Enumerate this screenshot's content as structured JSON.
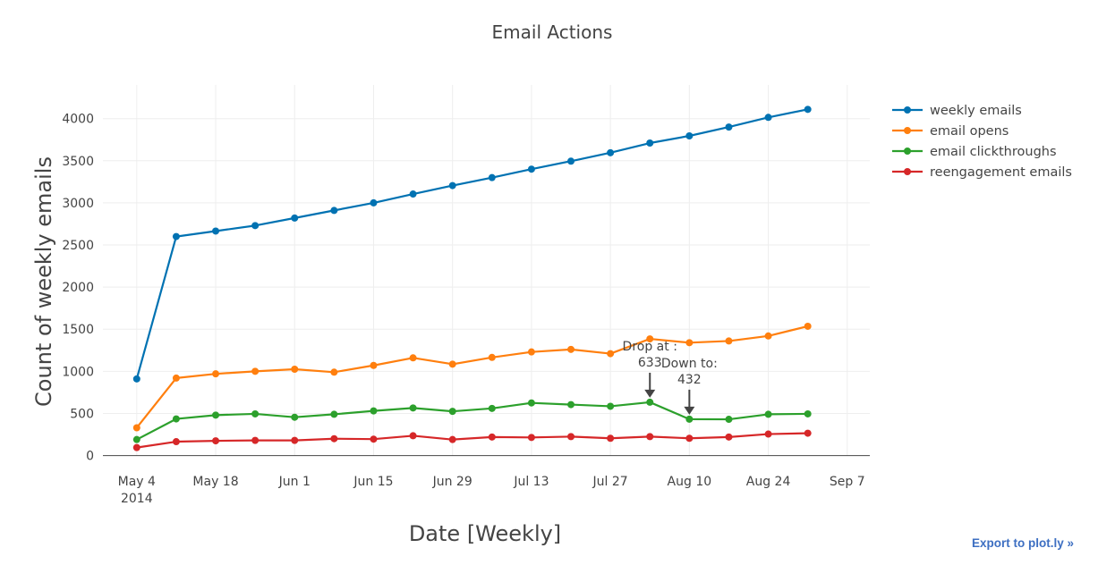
{
  "chart_data": {
    "type": "line",
    "title": "Email Actions",
    "xlabel": "Date [Weekly]",
    "ylabel": "Count of weekly emails",
    "x": [
      "2014-05-04",
      "2014-05-11",
      "2014-05-18",
      "2014-05-25",
      "2014-06-01",
      "2014-06-08",
      "2014-06-15",
      "2014-06-22",
      "2014-06-29",
      "2014-07-06",
      "2014-07-13",
      "2014-07-20",
      "2014-07-27",
      "2014-08-03",
      "2014-08-10",
      "2014-08-17",
      "2014-08-24",
      "2014-08-31"
    ],
    "xlim": [
      "2014-04-28",
      "2014-09-11"
    ],
    "x_ticks": [
      {
        "date": "2014-05-04",
        "label": "May 4",
        "sublabel": "2014"
      },
      {
        "date": "2014-05-18",
        "label": "May 18",
        "sublabel": ""
      },
      {
        "date": "2014-06-01",
        "label": "Jun 1",
        "sublabel": ""
      },
      {
        "date": "2014-06-15",
        "label": "Jun 15",
        "sublabel": ""
      },
      {
        "date": "2014-06-29",
        "label": "Jun 29",
        "sublabel": ""
      },
      {
        "date": "2014-07-13",
        "label": "Jul 13",
        "sublabel": ""
      },
      {
        "date": "2014-07-27",
        "label": "Jul 27",
        "sublabel": ""
      },
      {
        "date": "2014-08-10",
        "label": "Aug 10",
        "sublabel": ""
      },
      {
        "date": "2014-08-24",
        "label": "Aug 24",
        "sublabel": ""
      },
      {
        "date": "2014-09-07",
        "label": "Sep 7",
        "sublabel": ""
      }
    ],
    "ylim": [
      -100,
      4400
    ],
    "y_ticks": [
      0,
      500,
      1000,
      1500,
      2000,
      2500,
      3000,
      3500,
      4000
    ],
    "grid": true,
    "legend_position": "top-right",
    "series": [
      {
        "name": "weekly emails",
        "color": "#0072b2",
        "values": [
          910,
          2600,
          2665,
          2730,
          2820,
          2910,
          3000,
          3105,
          3205,
          3300,
          3400,
          3495,
          3595,
          3710,
          3795,
          3900,
          4015,
          4110
        ]
      },
      {
        "name": "email opens",
        "color": "#ff7f0e",
        "values": [
          330,
          920,
          970,
          1000,
          1025,
          990,
          1070,
          1160,
          1085,
          1165,
          1230,
          1260,
          1210,
          1385,
          1340,
          1360,
          1420,
          1535
        ]
      },
      {
        "name": "email clickthroughs",
        "color": "#2ca02c",
        "values": [
          190,
          435,
          480,
          495,
          455,
          490,
          530,
          565,
          525,
          560,
          625,
          605,
          585,
          633,
          432,
          430,
          490,
          495
        ]
      },
      {
        "name": "reengagement emails",
        "color": "#d62728",
        "values": [
          95,
          165,
          175,
          180,
          180,
          200,
          195,
          235,
          190,
          220,
          215,
          225,
          205,
          225,
          205,
          220,
          255,
          265
        ]
      }
    ],
    "annotations": [
      {
        "date": "2014-08-03",
        "value": 633,
        "line1": "Drop at :",
        "line2": "633"
      },
      {
        "date": "2014-08-10",
        "value": 432,
        "line1": "Down to:",
        "line2": "432"
      }
    ]
  },
  "export_label": "Export to plot.ly »"
}
